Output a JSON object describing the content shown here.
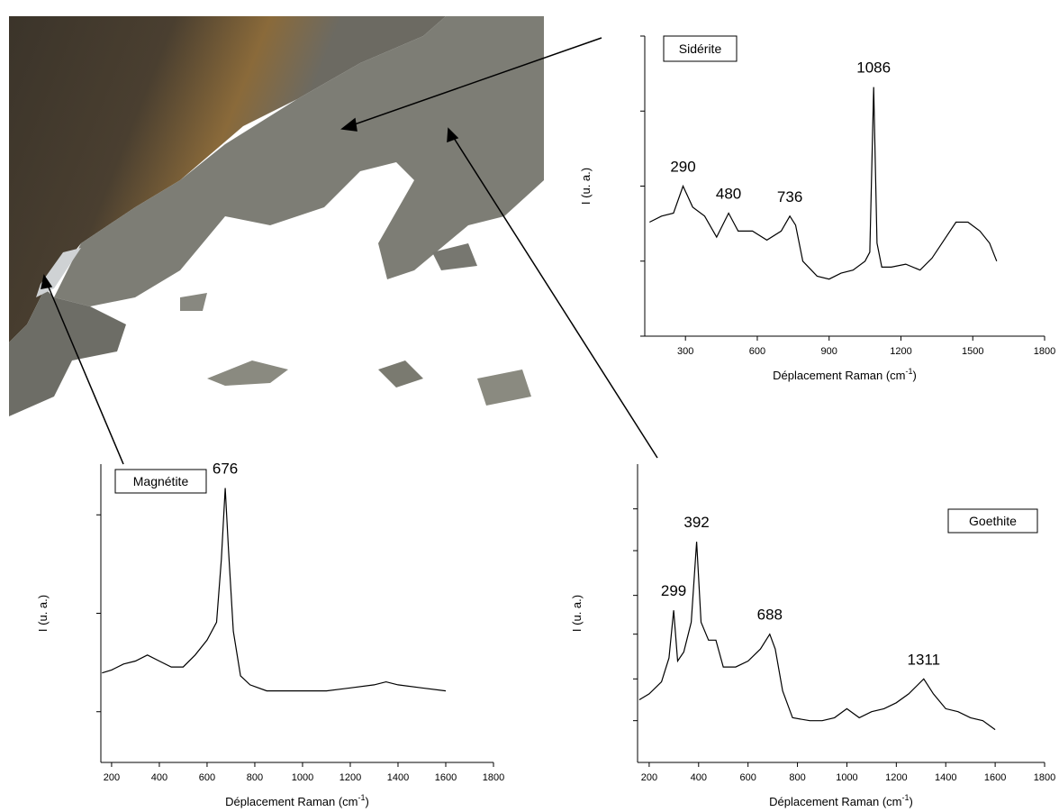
{
  "chart_data": [
    {
      "type": "line",
      "title": "Sidérite",
      "xlabel": "Déplacement Raman (cm",
      "xlabel_sup": "-1",
      "xlabel_end": ")",
      "ylabel": "I (u. a.)",
      "color": "#000000",
      "x": [
        150,
        200,
        250,
        290,
        330,
        380,
        430,
        480,
        520,
        580,
        640,
        700,
        736,
        760,
        790,
        850,
        900,
        950,
        1000,
        1050,
        1070,
        1086,
        1100,
        1120,
        1160,
        1220,
        1280,
        1330,
        1380,
        1430,
        1480,
        1530,
        1570,
        1600
      ],
      "values": [
        38,
        40,
        41,
        50,
        43,
        40,
        33,
        41,
        35,
        35,
        32,
        35,
        40,
        37,
        25,
        20,
        19,
        21,
        22,
        25,
        28,
        83,
        31,
        23,
        23,
        24,
        22,
        26,
        32,
        38,
        38,
        35,
        31,
        25
      ],
      "xlim": [
        130,
        1800
      ],
      "xticks": [
        300,
        600,
        900,
        1200,
        1500,
        1800
      ],
      "ylim": [
        0,
        100
      ],
      "yticks": [
        0,
        25,
        50,
        75,
        100
      ],
      "peaks": [
        290,
        480,
        736,
        1086
      ]
    },
    {
      "type": "line",
      "title": "Magnétite",
      "xlabel": "Déplacement Raman (cm",
      "xlabel_sup": "-1",
      "xlabel_end": ")",
      "ylabel": "I (u. a.)",
      "color": "#000000",
      "x": [
        160,
        200,
        250,
        300,
        350,
        400,
        450,
        500,
        550,
        600,
        640,
        660,
        676,
        690,
        710,
        740,
        780,
        850,
        900,
        1000,
        1100,
        1200,
        1300,
        1350,
        1400,
        1500,
        1600
      ],
      "values": [
        30,
        31,
        33,
        34,
        36,
        34,
        32,
        32,
        36,
        41,
        47,
        68,
        92,
        71,
        44,
        29,
        26,
        24,
        24,
        24,
        24,
        25,
        26,
        27,
        26,
        25,
        24
      ],
      "xlim": [
        155,
        1800
      ],
      "xticks": [
        200,
        400,
        600,
        800,
        1000,
        1200,
        1400,
        1600,
        1800
      ],
      "ylim": [
        0,
        100
      ],
      "yticks": [
        17,
        50,
        83
      ],
      "peaks": [
        676
      ]
    },
    {
      "type": "line",
      "title": "Goethite",
      "xlabel": "Déplacement Raman (cm",
      "xlabel_sup": "-1",
      "xlabel_end": ")",
      "ylabel": "I (u. a.)",
      "color": "#000000",
      "x": [
        160,
        200,
        250,
        280,
        299,
        315,
        340,
        370,
        392,
        410,
        440,
        470,
        500,
        550,
        600,
        650,
        688,
        710,
        740,
        780,
        850,
        900,
        950,
        1000,
        1050,
        1100,
        1150,
        1200,
        1250,
        1311,
        1350,
        1400,
        1450,
        1500,
        1550,
        1600
      ],
      "values": [
        21,
        23,
        27,
        35,
        51,
        34,
        37,
        47,
        74,
        47,
        41,
        41,
        32,
        32,
        34,
        38,
        43,
        38,
        24,
        15,
        14,
        14,
        15,
        18,
        15,
        17,
        18,
        20,
        23,
        28,
        23,
        18,
        17,
        15,
        14,
        11
      ],
      "xlim": [
        153,
        1800
      ],
      "xticks": [
        200,
        400,
        600,
        800,
        1000,
        1200,
        1400,
        1600,
        1800
      ],
      "ylim": [
        0,
        100
      ],
      "yticks": [
        14,
        28,
        43,
        56,
        71,
        85
      ],
      "peaks": [
        299,
        392,
        688,
        1311
      ]
    }
  ]
}
